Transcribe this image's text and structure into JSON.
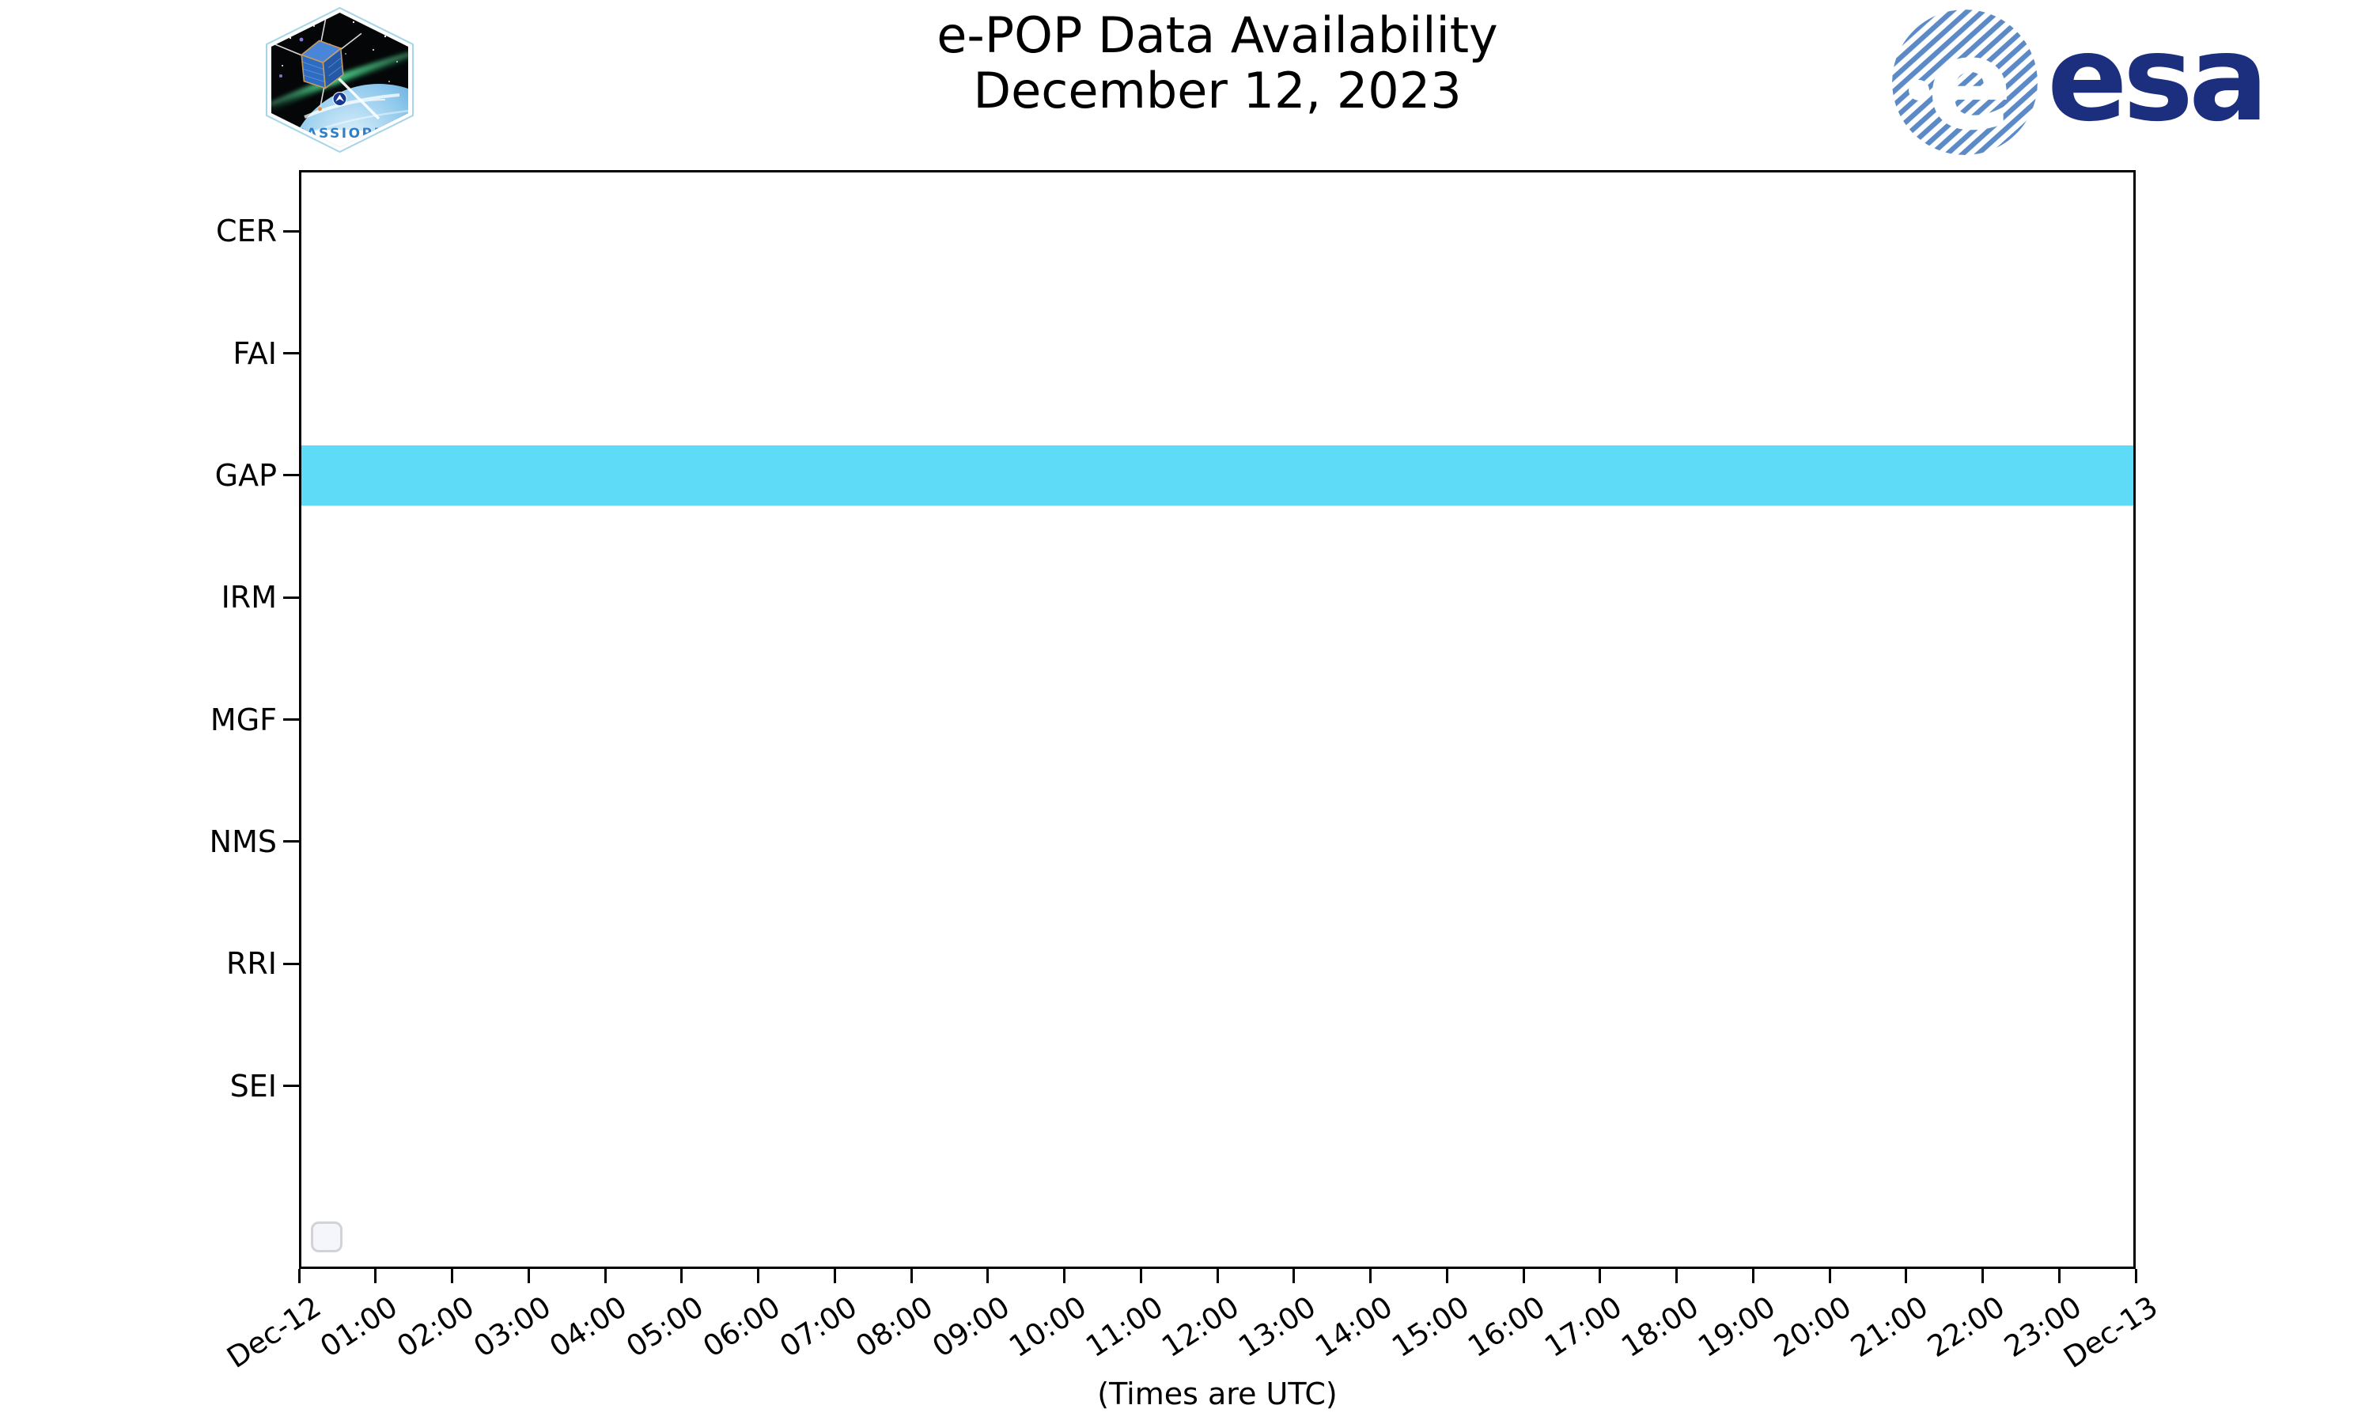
{
  "page": {
    "title_line1": "e-POP Data Availability",
    "title_line2": "December 12, 2023",
    "x_axis_caption": "(Times are UTC)"
  },
  "logos": {
    "cassiope_text": "CASSIOPE",
    "esa_text": "esa",
    "esa_globe_letter": "e"
  },
  "colors": {
    "bar_fill": "#5edcf7",
    "esa_navy": "#1b2f7e",
    "esa_stripe_blue": "#5b8ac6",
    "axis_black": "#000000",
    "legend_border": "#d2d3d7",
    "legend_fill": "#f4f6fb",
    "cassiope_blue": "#2e7fc6"
  },
  "chart_data": {
    "type": "bar",
    "subtype": "horizontal-availability-timeline",
    "title": "e-POP Data Availability December 12, 2023",
    "xlabel": "(Times are UTC)",
    "grid": false,
    "categories": [
      "CER",
      "FAI",
      "GAP",
      "IRM",
      "MGF",
      "NMS",
      "RRI",
      "SEI"
    ],
    "x_ticks": [
      "Dec-12",
      "01:00",
      "02:00",
      "03:00",
      "04:00",
      "05:00",
      "06:00",
      "07:00",
      "08:00",
      "09:00",
      "10:00",
      "11:00",
      "12:00",
      "13:00",
      "14:00",
      "15:00",
      "16:00",
      "17:00",
      "18:00",
      "19:00",
      "20:00",
      "21:00",
      "22:00",
      "23:00",
      "Dec-13"
    ],
    "x_range_hours": [
      0,
      24
    ],
    "bar_height_fraction": 0.49,
    "legend": {
      "visible": true,
      "entries": []
    },
    "series": [
      {
        "name": "CER",
        "color": "#5edcf7",
        "intervals": []
      },
      {
        "name": "FAI",
        "color": "#5edcf7",
        "intervals": []
      },
      {
        "name": "GAP",
        "color": "#5edcf7",
        "intervals": [
          {
            "start_hour": 0,
            "end_hour": 24
          }
        ]
      },
      {
        "name": "IRM",
        "color": "#5edcf7",
        "intervals": []
      },
      {
        "name": "MGF",
        "color": "#5edcf7",
        "intervals": []
      },
      {
        "name": "NMS",
        "color": "#5edcf7",
        "intervals": []
      },
      {
        "name": "RRI",
        "color": "#5edcf7",
        "intervals": []
      },
      {
        "name": "SEI",
        "color": "#5edcf7",
        "intervals": []
      }
    ]
  }
}
